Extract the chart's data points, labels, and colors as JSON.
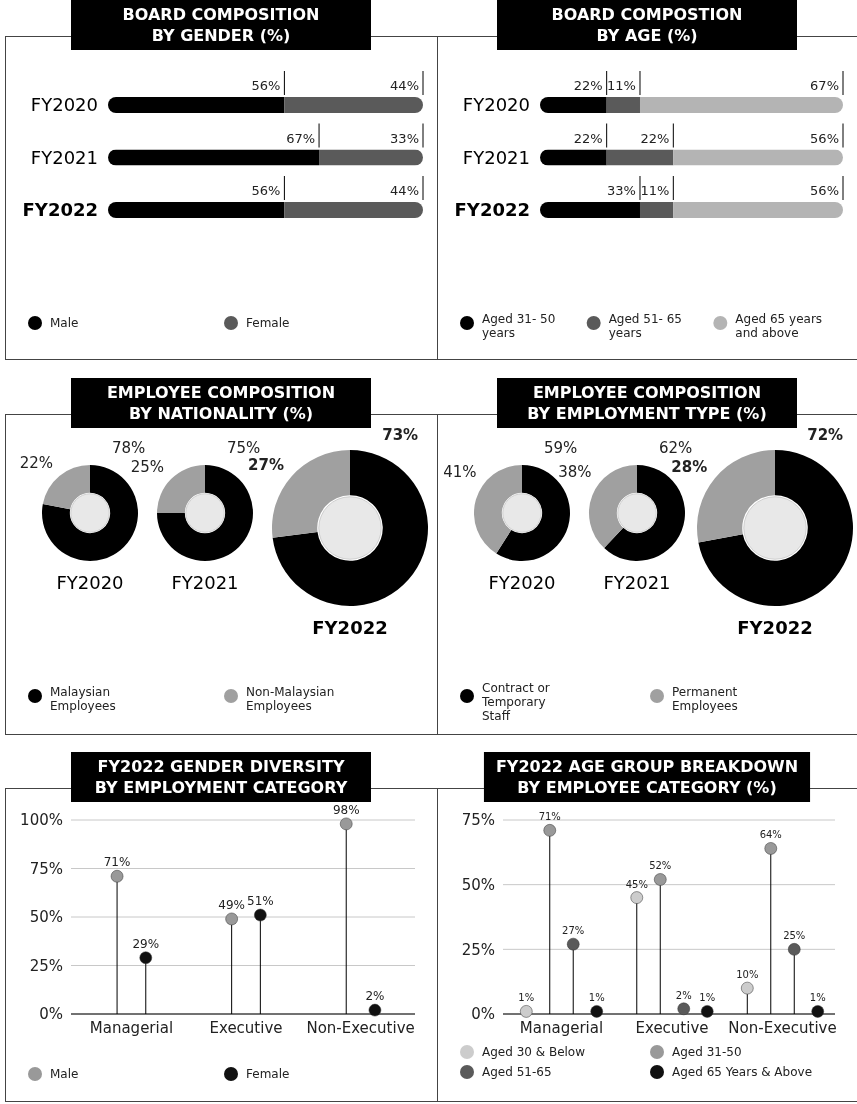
{
  "chart_data": [
    {
      "type": "bar",
      "orientation": "horizontal",
      "stacked": true,
      "title": "BOARD COMPOSITION\nBY GENDER (%)",
      "categories": [
        "FY2020",
        "FY2021",
        "FY2022"
      ],
      "xlim": [
        0,
        100
      ],
      "legend": "bottom",
      "series": [
        {
          "name": "Male",
          "color": "#000000",
          "values": [
            56,
            67,
            56
          ],
          "value_labels": [
            "56%",
            "67%",
            "56%"
          ]
        },
        {
          "name": "Female",
          "color": "#5a5a5a",
          "values": [
            44,
            33,
            44
          ],
          "value_labels": [
            "44%",
            "33%",
            "44%"
          ]
        }
      ]
    },
    {
      "type": "bar",
      "orientation": "horizontal",
      "stacked": true,
      "title": "BOARD COMPOSTION\nBY AGE (%)",
      "categories": [
        "FY2020",
        "FY2021",
        "FY2022"
      ],
      "xlim": [
        0,
        100
      ],
      "legend": "bottom",
      "series": [
        {
          "name": "Aged 31- 50 years",
          "color": "#000000",
          "values": [
            22,
            22,
            33
          ],
          "value_labels": [
            "22%",
            "22%",
            "33%"
          ]
        },
        {
          "name": "Aged 51- 65 years",
          "color": "#5a5a5a",
          "values": [
            11,
            22,
            11
          ],
          "value_labels": [
            "11%",
            "22%",
            "11%"
          ]
        },
        {
          "name": "Aged 65 years and above",
          "color": "#b4b4b4",
          "values": [
            67,
            56,
            56
          ],
          "value_labels": [
            "67%",
            "56%",
            "56%"
          ]
        }
      ]
    },
    {
      "type": "donut",
      "title": "EMPLOYEE COMPOSITION\nBY NATIONALITY (%)",
      "categories": [
        "Malaysian Employees",
        "Non-Malaysian Employees"
      ],
      "colors": [
        "#000000",
        "#a0a0a0"
      ],
      "legend": "bottom",
      "series": [
        {
          "name": "FY2020",
          "values": [
            78,
            22
          ],
          "value_labels": [
            "78%",
            "22%"
          ]
        },
        {
          "name": "FY2021",
          "values": [
            75,
            25
          ],
          "value_labels": [
            "75%",
            "25%"
          ]
        },
        {
          "name": "FY2022",
          "values": [
            73,
            27
          ],
          "value_labels": [
            "73%",
            "27%"
          ]
        }
      ]
    },
    {
      "type": "donut",
      "title": "EMPLOYEE COMPOSITION\nBY EMPLOYMENT TYPE (%)",
      "categories": [
        "Contract or Temporary Staff",
        "Permanent Employees"
      ],
      "colors": [
        "#000000",
        "#a0a0a0"
      ],
      "legend": "bottom",
      "series": [
        {
          "name": "FY2020",
          "values": [
            59,
            41
          ],
          "value_labels": [
            "59%",
            "41%"
          ]
        },
        {
          "name": "FY2021",
          "values": [
            62,
            38
          ],
          "value_labels": [
            "62%",
            "38%"
          ]
        },
        {
          "name": "FY2022",
          "values": [
            72,
            28
          ],
          "value_labels": [
            "72%",
            "28%"
          ]
        }
      ]
    },
    {
      "type": "lollipop",
      "title": "FY2022 GENDER DIVERSITY\nBY EMPLOYMENT CATEGORY",
      "categories": [
        "Managerial",
        "Executive",
        "Non-Executive"
      ],
      "ylim": [
        0,
        100
      ],
      "yticks": [
        {
          "value": 0,
          "label": "0%"
        },
        {
          "value": 25,
          "label": "25%"
        },
        {
          "value": 50,
          "label": "50%"
        },
        {
          "value": 75,
          "label": "75%"
        },
        {
          "value": 100,
          "label": "100%"
        }
      ],
      "grid": "y",
      "legend": "bottom",
      "series": [
        {
          "name": "Male",
          "color": "#999999",
          "values": [
            71,
            49,
            98
          ],
          "value_labels": [
            "71%",
            "49%",
            "98%"
          ]
        },
        {
          "name": "Female",
          "color": "#111111",
          "values": [
            29,
            51,
            2
          ],
          "value_labels": [
            "29%",
            "51%",
            "2%"
          ]
        }
      ]
    },
    {
      "type": "lollipop",
      "title": "FY2022 AGE GROUP BREAKDOWN\nBY EMPLOYEE CATEGORY (%)",
      "categories": [
        "Managerial",
        "Executive",
        "Non-Executive"
      ],
      "ylim": [
        0,
        75
      ],
      "yticks": [
        {
          "value": 0,
          "label": "0%"
        },
        {
          "value": 25,
          "label": "25%"
        },
        {
          "value": 50,
          "label": "50%"
        },
        {
          "value": 75,
          "label": "75%"
        }
      ],
      "grid": "y",
      "legend": "bottom",
      "series": [
        {
          "name": "Aged 30 & Below",
          "color": "#cccccc",
          "values": [
            1,
            45,
            10
          ],
          "value_labels": [
            "1%",
            "45%",
            "10%"
          ]
        },
        {
          "name": "Aged 31-50",
          "color": "#999999",
          "values": [
            71,
            52,
            64
          ],
          "value_labels": [
            "71%",
            "52%",
            "64%"
          ]
        },
        {
          "name": "Aged 51-65",
          "color": "#5a5a5a",
          "values": [
            27,
            2,
            25
          ],
          "value_labels": [
            "27%",
            "2%",
            "25%"
          ]
        },
        {
          "name": "Aged 65 Years & Above",
          "color": "#111111",
          "values": [
            1,
            1,
            1
          ],
          "value_labels": [
            "1%",
            "1%",
            "1%"
          ]
        }
      ]
    }
  ]
}
